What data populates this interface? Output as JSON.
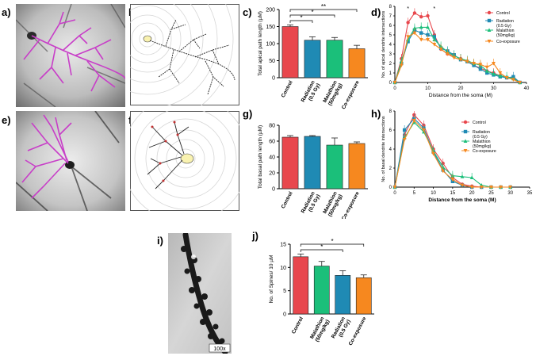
{
  "panel_labels": {
    "a": "a)",
    "b": "b)",
    "c": "c)",
    "d": "d)",
    "e": "e)",
    "f": "f)",
    "g": "g)",
    "h": "h)",
    "i": "i)",
    "j": "j)"
  },
  "scale_bar": "100x",
  "colors": {
    "control": "#e8474d",
    "radiation": "#1f8ab4",
    "malathion": "#1bbf7a",
    "coexposure": "#f6881f",
    "trace": "#c83ec8"
  },
  "chart_data": [
    {
      "id": "c",
      "type": "bar",
      "ylabel": "Total apical path length (µM)",
      "ylim": [
        0,
        200
      ],
      "yticks": [
        0,
        50,
        100,
        150,
        200
      ],
      "categories": [
        "Control",
        "Radiation\n(0.5 Gy)",
        "Malathion\n(50mg/kg)",
        "Co-exposure"
      ],
      "values": [
        150,
        110,
        110,
        85
      ],
      "errors": [
        5,
        10,
        8,
        10
      ],
      "significance": [
        {
          "from": 0,
          "to": 1,
          "label": "*"
        },
        {
          "from": 0,
          "to": 2,
          "label": "*"
        },
        {
          "from": 0,
          "to": 3,
          "label": "**"
        }
      ]
    },
    {
      "id": "g",
      "type": "bar",
      "ylabel": "Total basal path length (µM)",
      "ylim": [
        0,
        80
      ],
      "yticks": [
        0,
        20,
        40,
        60,
        80
      ],
      "categories": [
        "Control",
        "Radiation\n(0.5 Gy)",
        "Malathion\n(50mg/kg)",
        "Co-exposure"
      ],
      "values": [
        65,
        66,
        55,
        57
      ],
      "errors": [
        2,
        1,
        9,
        2
      ]
    },
    {
      "id": "j",
      "type": "bar",
      "ylabel": "No. of Spines/ 10 µM",
      "ylim": [
        0,
        15
      ],
      "yticks": [
        0,
        5,
        10,
        15
      ],
      "categories": [
        "Control",
        "Malathion\n(50mg/kg)",
        "Radiation\n(0.5 Gy)",
        "Co-exposure"
      ],
      "values": [
        12.3,
        10.3,
        8.3,
        7.8
      ],
      "errors": [
        0.6,
        1.0,
        1.0,
        0.6
      ],
      "significance": [
        {
          "from": 0,
          "to": 2,
          "label": "*"
        },
        {
          "from": 0,
          "to": 3,
          "label": "*"
        }
      ]
    },
    {
      "id": "d",
      "type": "line",
      "xlabel": "Distance from the soma (M)",
      "ylabel": "No. of apical dendrite intersections",
      "xlim": [
        0,
        40
      ],
      "ylim": [
        0,
        8
      ],
      "xticks": [
        0,
        10,
        20,
        30,
        40
      ],
      "yticks": [
        0,
        1,
        2,
        3,
        4,
        5,
        6,
        7,
        8
      ],
      "x": [
        0,
        2,
        4,
        6,
        8,
        10,
        12,
        14,
        16,
        18,
        20,
        22,
        24,
        26,
        28,
        30,
        32,
        34,
        36,
        38
      ],
      "series": [
        {
          "name": "Control",
          "values": [
            0,
            2.5,
            6.3,
            7.3,
            6.9,
            7.0,
            5.0,
            3.5,
            3.0,
            2.8,
            2.5,
            2.2,
            1.8,
            1.5,
            1.2,
            1.0,
            0.7,
            0.5,
            0.5,
            0
          ]
        },
        {
          "name": "Radiation\n(0.5 Gy)",
          "values": [
            0,
            2.0,
            4.3,
            5.5,
            5.2,
            5.0,
            4.8,
            3.6,
            3.3,
            2.9,
            2.4,
            2.2,
            1.8,
            1.4,
            1.0,
            0.8,
            0.6,
            0.5,
            0.6,
            0
          ]
        },
        {
          "name": "Malathion\n(50mg/kg)",
          "values": [
            0,
            2.2,
            4.5,
            5.7,
            5.8,
            5.8,
            4.5,
            3.8,
            3.2,
            2.8,
            2.5,
            2.3,
            2.0,
            1.8,
            1.2,
            0.9,
            0.7,
            0.6,
            0.4,
            0
          ]
        },
        {
          "name": "Co-exposure",
          "values": [
            0,
            1.8,
            4.8,
            5.2,
            4.5,
            4.5,
            4.0,
            3.5,
            3.0,
            2.6,
            2.4,
            2.2,
            2.0,
            1.9,
            1.6,
            2.0,
            1.0,
            0.5,
            0.3,
            0
          ]
        }
      ],
      "annotations": [
        "*",
        "*"
      ]
    },
    {
      "id": "h",
      "type": "line",
      "xlabel": "Distance from the soma (M)",
      "ylabel": "No. of basal dendrite intersections",
      "xlim": [
        0,
        35
      ],
      "ylim": [
        0,
        8
      ],
      "xticks": [
        0,
        5,
        10,
        15,
        20,
        25,
        30,
        35
      ],
      "yticks": [
        0,
        2,
        4,
        6,
        8
      ],
      "x": [
        0,
        2.5,
        5,
        7.5,
        10,
        12.5,
        15,
        17.5,
        20,
        22.5,
        25,
        27.5,
        30
      ],
      "series": [
        {
          "name": "Control",
          "values": [
            0,
            5.5,
            7.6,
            6.5,
            4.0,
            2.5,
            1.0,
            0.3,
            0.1,
            0,
            0,
            0,
            0
          ]
        },
        {
          "name": "Radiation\n(0.5 Gy)",
          "values": [
            0,
            6.0,
            7.2,
            6.2,
            3.7,
            1.8,
            0.6,
            0.2,
            0,
            0,
            0,
            0,
            0
          ]
        },
        {
          "name": "Malathion\n(50mg/kg)",
          "values": [
            0,
            5.2,
            6.8,
            5.8,
            3.8,
            2.1,
            1.2,
            1.1,
            1.0,
            0.2,
            0,
            0,
            0
          ]
        },
        {
          "name": "Co-exposure",
          "values": [
            0,
            5.0,
            7.0,
            6.0,
            3.5,
            1.7,
            0.8,
            0.2,
            0,
            0,
            0,
            0,
            0
          ]
        }
      ]
    }
  ]
}
